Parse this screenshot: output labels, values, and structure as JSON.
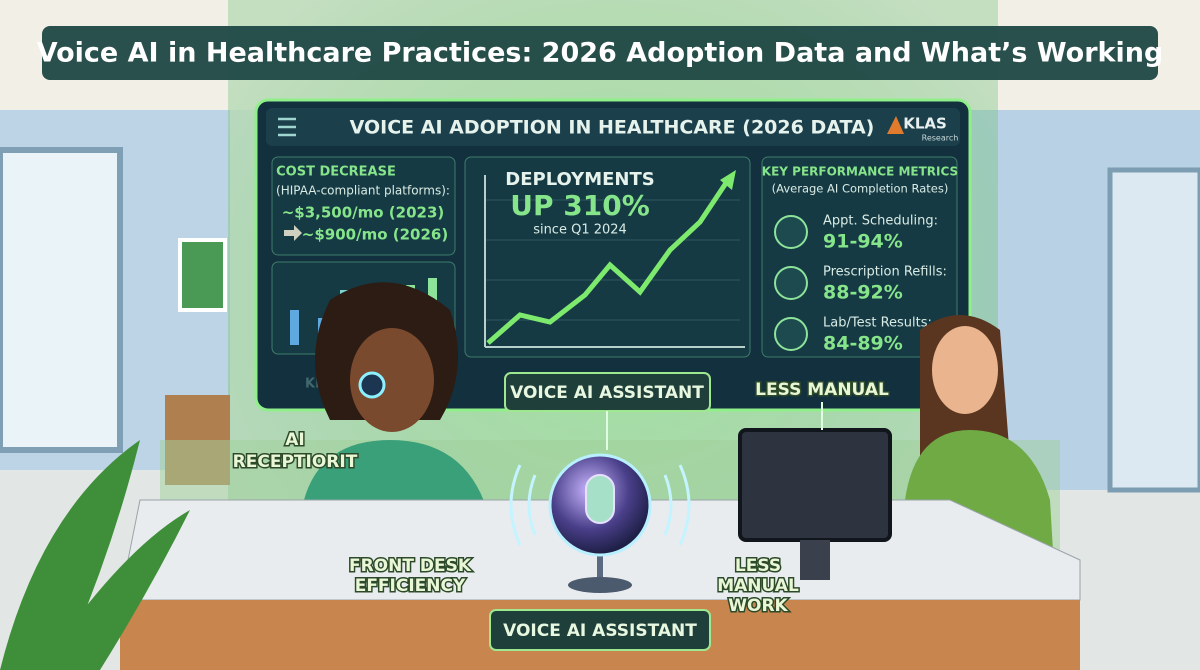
{
  "header": {
    "title": "Voice AI in Healthcare Practices: 2026 Adoption Data and What’s Working"
  },
  "panel": {
    "heading": "VOICE AI ADOPTION IN HEALTHCARE (2026 DATA)",
    "logo": {
      "name": "KLAS",
      "sub": "Research"
    },
    "watermark": "KLAS",
    "cost": {
      "title": "COST DECREASE",
      "subtitle": "(HIPAA-compliant platforms):",
      "before": "~$3,500/mo (2023)",
      "after": "~$900/mo (2026)"
    },
    "deployments": {
      "title": "DEPLOYMENTS",
      "value": "UP 310%",
      "since": "since Q1 2024"
    },
    "metrics": {
      "title": "KEY PERFORMANCE METRICS",
      "subtitle": "(Average AI Completion Rates)",
      "items": [
        {
          "label": "Appt. Scheduling:",
          "value": "91-94%"
        },
        {
          "label": "Prescription Refills:",
          "value": "88-92%"
        },
        {
          "label": "Lab/Test Results:",
          "value": "84-89%"
        }
      ]
    }
  },
  "labels": {
    "ai_receptionist": [
      "AI",
      "RECEPTIORIT"
    ],
    "voice_ai_top": "VOICE AI ASSISTANT",
    "less_manual_top": "LESS MANUAL",
    "front_desk": [
      "FRONT DESK",
      "EFFICIENCY"
    ],
    "less_manual_work": [
      "LESS",
      "MANUAL",
      "WORK"
    ],
    "voice_ai_bottom": "VOICE AI ASSISTANT"
  }
}
